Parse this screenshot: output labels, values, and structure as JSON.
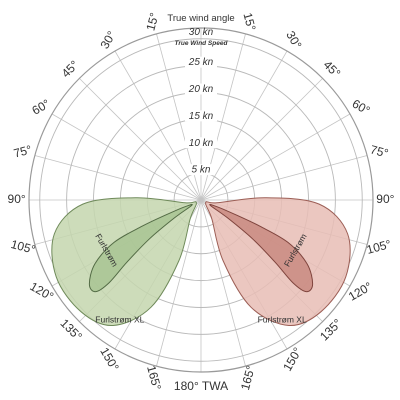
{
  "chart_data": {
    "type": "polar-area",
    "title": "True wind angle",
    "radial_axis_title": "True Wind Speed",
    "radial_unit": "kn",
    "radial_ticks": [
      5,
      10,
      15,
      20,
      25,
      30
    ],
    "radial_tick_labels": [
      "5 kn",
      "10 kn",
      "15 kn",
      "20 kn",
      "25 kn",
      "30 kn"
    ],
    "radial_max": 32,
    "angle_step_deg": 15,
    "angle_tick_labels": [
      {
        "angle": 15,
        "text": "15°"
      },
      {
        "angle": 30,
        "text": "30°"
      },
      {
        "angle": 45,
        "text": "45°"
      },
      {
        "angle": 60,
        "text": "60°"
      },
      {
        "angle": 75,
        "text": "75°"
      },
      {
        "angle": 90,
        "text": "90°"
      },
      {
        "angle": 105,
        "text": "105°"
      },
      {
        "angle": 120,
        "text": "120°"
      },
      {
        "angle": 135,
        "text": "135°"
      },
      {
        "angle": 150,
        "text": "150°"
      },
      {
        "angle": 165,
        "text": "165°"
      },
      {
        "angle": 180,
        "text": "180° TWA"
      }
    ],
    "series": [
      {
        "name": "Furlstrøm XL",
        "side": "left",
        "fill": "#c4d6ae",
        "stroke": "#6f8a5a",
        "boundary": [
          [
            3,
            100
          ],
          [
            12,
            88
          ],
          [
            22,
            92
          ],
          [
            28,
            103
          ],
          [
            30.5,
            118
          ],
          [
            30.5,
            133
          ],
          [
            28.5,
            145
          ],
          [
            22,
            155
          ],
          [
            12,
            160
          ],
          [
            4,
            150
          ],
          [
            1,
            120
          ]
        ]
      },
      {
        "name": "Furlstrøm",
        "side": "left",
        "fill": "#a8c493",
        "stroke": "#536b45",
        "boundary": [
          [
            3,
            113
          ],
          [
            7,
            113
          ],
          [
            12,
            114
          ],
          [
            18,
            116
          ],
          [
            23,
            121
          ],
          [
            26,
            127
          ],
          [
            26,
            131
          ],
          [
            23,
            132
          ],
          [
            18,
            130
          ],
          [
            12,
            127
          ],
          [
            6,
            124
          ],
          [
            2,
            120
          ]
        ]
      },
      {
        "name": "Furlstrøm XL",
        "side": "right",
        "fill": "#e8bdb5",
        "stroke": "#9c5e55",
        "boundary": [
          [
            3,
            100
          ],
          [
            12,
            88
          ],
          [
            22,
            92
          ],
          [
            28,
            103
          ],
          [
            30.5,
            118
          ],
          [
            30.5,
            133
          ],
          [
            28.5,
            145
          ],
          [
            22,
            155
          ],
          [
            12,
            160
          ],
          [
            4,
            150
          ],
          [
            1,
            120
          ]
        ]
      },
      {
        "name": "Furlstrøm",
        "side": "right",
        "fill": "#c98a80",
        "stroke": "#7f443d",
        "boundary": [
          [
            3,
            113
          ],
          [
            7,
            113
          ],
          [
            12,
            114
          ],
          [
            18,
            116
          ],
          [
            23,
            121
          ],
          [
            26,
            127
          ],
          [
            26,
            131
          ],
          [
            23,
            132
          ],
          [
            18,
            130
          ],
          [
            12,
            127
          ],
          [
            6,
            124
          ],
          [
            2,
            120
          ]
        ]
      }
    ],
    "series_labels": [
      {
        "text": "Furlstrøm",
        "side": "left",
        "r": 20,
        "angle": 118,
        "rotate": 60
      },
      {
        "text": "Furlstrøm",
        "side": "right",
        "r": 20,
        "angle": 118,
        "rotate": -60
      },
      {
        "text": "Furlstrøm XL",
        "side": "left",
        "r": 27,
        "angle": 146,
        "rotate": 0
      },
      {
        "text": "Furlstrøm XL",
        "side": "right",
        "r": 27,
        "angle": 146,
        "rotate": 0
      }
    ]
  }
}
